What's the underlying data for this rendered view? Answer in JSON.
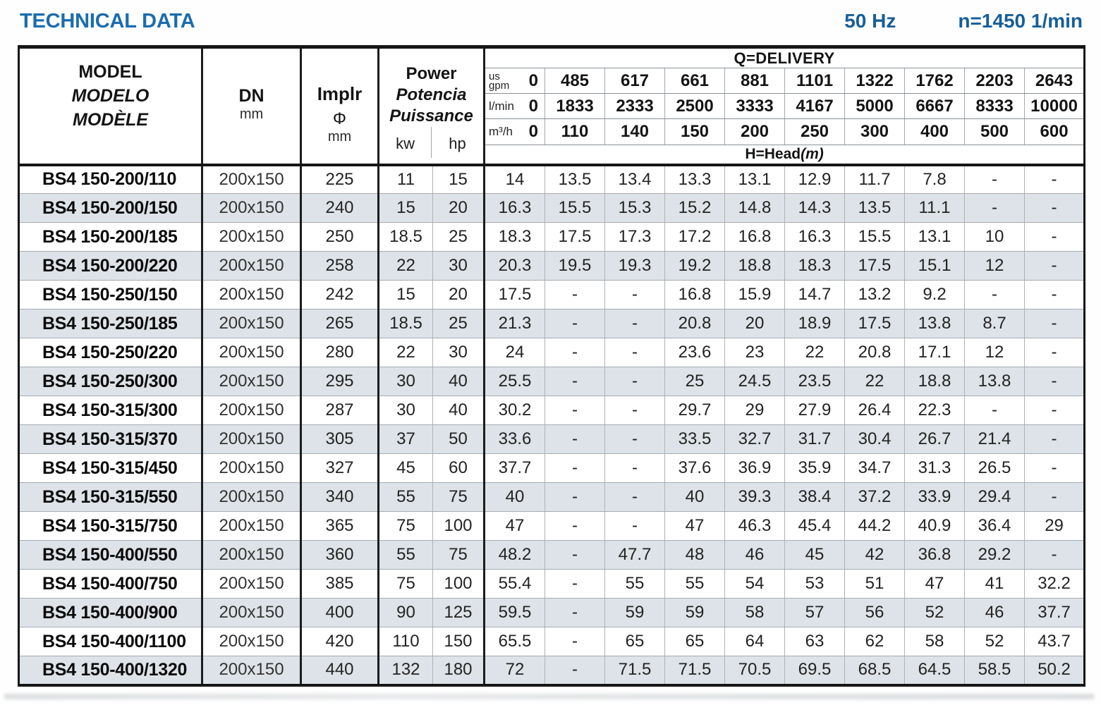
{
  "header": {
    "title": "TECHNICAL DATA",
    "frequency": "50 Hz",
    "speed": "n=1450 1/min"
  },
  "colors": {
    "accent_blue_title": "#1b6dad",
    "accent_blue_right": "#175f98",
    "row_stripe": "#dde3e8",
    "grid_line": "#a6abb0",
    "heavy_line": "#161616"
  },
  "table": {
    "model_header": {
      "en": "MODEL",
      "es": "MODELO",
      "fr": "MODÈLE"
    },
    "dn_header": {
      "label": "DN",
      "unit": "mm"
    },
    "implr_header": {
      "label": "Implr",
      "symbol": "Φ",
      "unit": "mm"
    },
    "power_header": {
      "en": "Power",
      "es": "Potencia",
      "fr": "Puissance",
      "unit_kw": "kw",
      "unit_hp": "hp"
    },
    "delivery": {
      "title": "Q=DELIVERY",
      "unit_rows": [
        {
          "unit": "us gpm",
          "unit_lines": [
            "us",
            "gpm"
          ],
          "values": [
            "0",
            "485",
            "617",
            "661",
            "881",
            "1101",
            "1322",
            "1762",
            "2203",
            "2643"
          ]
        },
        {
          "unit": "l/min",
          "values": [
            "0",
            "1833",
            "2333",
            "2500",
            "3333",
            "4167",
            "5000",
            "6667",
            "8333",
            "10000"
          ]
        },
        {
          "unit": "m³/h",
          "values": [
            "0",
            "110",
            "140",
            "150",
            "200",
            "250",
            "300",
            "400",
            "500",
            "600"
          ]
        }
      ],
      "head_label": "H=Head",
      "head_unit": "(m)"
    },
    "rows": [
      {
        "model": "BS4 150-200/110",
        "dn": "200x150",
        "implr": "225",
        "kw": "11",
        "hp": "15",
        "head": [
          "14",
          "13.5",
          "13.4",
          "13.3",
          "13.1",
          "12.9",
          "11.7",
          "7.8",
          "-",
          "-"
        ]
      },
      {
        "model": "BS4 150-200/150",
        "dn": "200x150",
        "implr": "240",
        "kw": "15",
        "hp": "20",
        "head": [
          "16.3",
          "15.5",
          "15.3",
          "15.2",
          "14.8",
          "14.3",
          "13.5",
          "11.1",
          "-",
          "-"
        ]
      },
      {
        "model": "BS4 150-200/185",
        "dn": "200x150",
        "implr": "250",
        "kw": "18.5",
        "hp": "25",
        "head": [
          "18.3",
          "17.5",
          "17.3",
          "17.2",
          "16.8",
          "16.3",
          "15.5",
          "13.1",
          "10",
          "-"
        ]
      },
      {
        "model": "BS4 150-200/220",
        "dn": "200x150",
        "implr": "258",
        "kw": "22",
        "hp": "30",
        "head": [
          "20.3",
          "19.5",
          "19.3",
          "19.2",
          "18.8",
          "18.3",
          "17.5",
          "15.1",
          "12",
          "-"
        ]
      },
      {
        "model": "BS4 150-250/150",
        "dn": "200x150",
        "implr": "242",
        "kw": "15",
        "hp": "20",
        "head": [
          "17.5",
          "-",
          "-",
          "16.8",
          "15.9",
          "14.7",
          "13.2",
          "9.2",
          "-",
          "-"
        ]
      },
      {
        "model": "BS4 150-250/185",
        "dn": "200x150",
        "implr": "265",
        "kw": "18.5",
        "hp": "25",
        "head": [
          "21.3",
          "-",
          "-",
          "20.8",
          "20",
          "18.9",
          "17.5",
          "13.8",
          "8.7",
          "-"
        ]
      },
      {
        "model": "BS4 150-250/220",
        "dn": "200x150",
        "implr": "280",
        "kw": "22",
        "hp": "30",
        "head": [
          "24",
          "-",
          "-",
          "23.6",
          "23",
          "22",
          "20.8",
          "17.1",
          "12",
          "-"
        ]
      },
      {
        "model": "BS4 150-250/300",
        "dn": "200x150",
        "implr": "295",
        "kw": "30",
        "hp": "40",
        "head": [
          "25.5",
          "-",
          "-",
          "25",
          "24.5",
          "23.5",
          "22",
          "18.8",
          "13.8",
          "-"
        ]
      },
      {
        "model": "BS4 150-315/300",
        "dn": "200x150",
        "implr": "287",
        "kw": "30",
        "hp": "40",
        "head": [
          "30.2",
          "-",
          "-",
          "29.7",
          "29",
          "27.9",
          "26.4",
          "22.3",
          "-",
          "-"
        ]
      },
      {
        "model": "BS4 150-315/370",
        "dn": "200x150",
        "implr": "305",
        "kw": "37",
        "hp": "50",
        "head": [
          "33.6",
          "-",
          "-",
          "33.5",
          "32.7",
          "31.7",
          "30.4",
          "26.7",
          "21.4",
          "-"
        ]
      },
      {
        "model": "BS4 150-315/450",
        "dn": "200x150",
        "implr": "327",
        "kw": "45",
        "hp": "60",
        "head": [
          "37.7",
          "-",
          "-",
          "37.6",
          "36.9",
          "35.9",
          "34.7",
          "31.3",
          "26.5",
          "-"
        ]
      },
      {
        "model": "BS4 150-315/550",
        "dn": "200x150",
        "implr": "340",
        "kw": "55",
        "hp": "75",
        "head": [
          "40",
          "-",
          "-",
          "40",
          "39.3",
          "38.4",
          "37.2",
          "33.9",
          "29.4",
          "-"
        ]
      },
      {
        "model": "BS4 150-315/750",
        "dn": "200x150",
        "implr": "365",
        "kw": "75",
        "hp": "100",
        "head": [
          "47",
          "-",
          "-",
          "47",
          "46.3",
          "45.4",
          "44.2",
          "40.9",
          "36.4",
          "29"
        ]
      },
      {
        "model": "BS4 150-400/550",
        "dn": "200x150",
        "implr": "360",
        "kw": "55",
        "hp": "75",
        "head": [
          "48.2",
          "-",
          "47.7",
          "48",
          "46",
          "45",
          "42",
          "36.8",
          "29.2",
          "-"
        ]
      },
      {
        "model": "BS4 150-400/750",
        "dn": "200x150",
        "implr": "385",
        "kw": "75",
        "hp": "100",
        "head": [
          "55.4",
          "-",
          "55",
          "55",
          "54",
          "53",
          "51",
          "47",
          "41",
          "32.2"
        ]
      },
      {
        "model": "BS4 150-400/900",
        "dn": "200x150",
        "implr": "400",
        "kw": "90",
        "hp": "125",
        "head": [
          "59.5",
          "-",
          "59",
          "59",
          "58",
          "57",
          "56",
          "52",
          "46",
          "37.7"
        ]
      },
      {
        "model": "BS4 150-400/1100",
        "dn": "200x150",
        "implr": "420",
        "kw": "110",
        "hp": "150",
        "head": [
          "65.5",
          "-",
          "65",
          "65",
          "64",
          "63",
          "62",
          "58",
          "52",
          "43.7"
        ]
      },
      {
        "model": "BS4 150-400/1320",
        "dn": "200x150",
        "implr": "440",
        "kw": "132",
        "hp": "180",
        "head": [
          "72",
          "-",
          "71.5",
          "71.5",
          "70.5",
          "69.5",
          "68.5",
          "64.5",
          "58.5",
          "50.2"
        ]
      }
    ]
  }
}
